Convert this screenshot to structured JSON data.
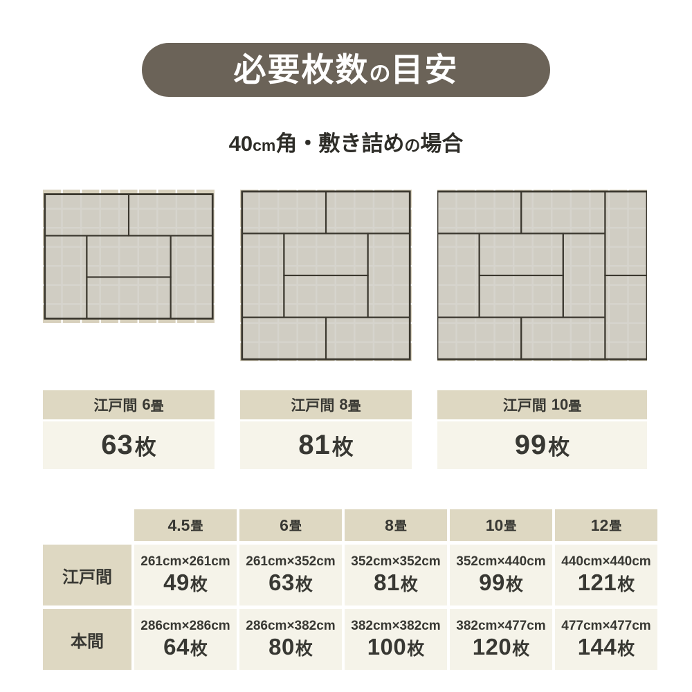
{
  "title": {
    "parts": [
      "必要枚数",
      "の",
      "目安"
    ]
  },
  "subtitle": {
    "parts": [
      "40",
      "cm",
      "角・敷き詰め",
      "の",
      "場合"
    ]
  },
  "colors": {
    "pill_bg": "#6b6358",
    "tile_tan": "#d7d0bc",
    "grid_line": "#ffffff",
    "mat_fill": "#cfccc4",
    "mat_outline": "#3a372e",
    "header_bg": "#ded8c2",
    "cell_bg": "#f5f3e9",
    "text_dark": "#383833"
  },
  "diagrams": [
    {
      "room_label": {
        "name": "江戸間",
        "num": "6",
        "unit": "畳"
      },
      "count": {
        "num": "63",
        "unit": "枚"
      },
      "grid_cols": 9,
      "grid_rows": 7,
      "room_w": 352,
      "room_h": 261,
      "mats": [
        [
          0,
          0,
          176,
          87
        ],
        [
          176,
          0,
          176,
          87
        ],
        [
          0,
          87,
          88,
          174
        ],
        [
          88,
          87,
          176,
          87
        ],
        [
          88,
          174,
          176,
          87
        ],
        [
          264,
          87,
          88,
          174
        ]
      ]
    },
    {
      "room_label": {
        "name": "江戸間",
        "num": "8",
        "unit": "畳"
      },
      "count": {
        "num": "81",
        "unit": "枚"
      },
      "grid_cols": 9,
      "grid_rows": 9,
      "room_w": 352,
      "room_h": 352,
      "mats": [
        [
          0,
          0,
          176,
          88
        ],
        [
          176,
          0,
          176,
          88
        ],
        [
          0,
          88,
          88,
          176
        ],
        [
          88,
          88,
          176,
          88
        ],
        [
          88,
          176,
          176,
          88
        ],
        [
          264,
          88,
          88,
          176
        ],
        [
          0,
          264,
          176,
          88
        ],
        [
          176,
          264,
          176,
          88
        ]
      ]
    },
    {
      "room_label": {
        "name": "江戸間",
        "num": "10",
        "unit": "畳"
      },
      "count": {
        "num": "99",
        "unit": "枚"
      },
      "grid_cols": 11,
      "grid_rows": 9,
      "room_w": 440,
      "room_h": 352,
      "mats": [
        [
          0,
          0,
          176,
          88
        ],
        [
          176,
          0,
          176,
          88
        ],
        [
          352,
          0,
          88,
          176
        ],
        [
          352,
          176,
          88,
          176
        ],
        [
          0,
          88,
          88,
          176
        ],
        [
          88,
          88,
          176,
          88
        ],
        [
          88,
          176,
          176,
          88
        ],
        [
          264,
          88,
          88,
          176
        ],
        [
          0,
          264,
          176,
          88
        ],
        [
          176,
          264,
          176,
          88
        ]
      ]
    }
  ],
  "table": {
    "col_headers": [
      {
        "num": "4.5",
        "unit": "畳"
      },
      {
        "num": "6",
        "unit": "畳"
      },
      {
        "num": "8",
        "unit": "畳"
      },
      {
        "num": "10",
        "unit": "畳"
      },
      {
        "num": "12",
        "unit": "畳"
      }
    ],
    "rows": [
      {
        "header": "江戸間",
        "cells": [
          {
            "dims": "261cm×261cm",
            "num": "49",
            "unit": "枚"
          },
          {
            "dims": "261cm×352cm",
            "num": "63",
            "unit": "枚"
          },
          {
            "dims": "352cm×352cm",
            "num": "81",
            "unit": "枚"
          },
          {
            "dims": "352cm×440cm",
            "num": "99",
            "unit": "枚"
          },
          {
            "dims": "440cm×440cm",
            "num": "121",
            "unit": "枚"
          }
        ]
      },
      {
        "header": "本間",
        "cells": [
          {
            "dims": "286cm×286cm",
            "num": "64",
            "unit": "枚"
          },
          {
            "dims": "286cm×382cm",
            "num": "80",
            "unit": "枚"
          },
          {
            "dims": "382cm×382cm",
            "num": "100",
            "unit": "枚"
          },
          {
            "dims": "382cm×477cm",
            "num": "120",
            "unit": "枚"
          },
          {
            "dims": "477cm×477cm",
            "num": "144",
            "unit": "枚"
          }
        ]
      }
    ]
  }
}
